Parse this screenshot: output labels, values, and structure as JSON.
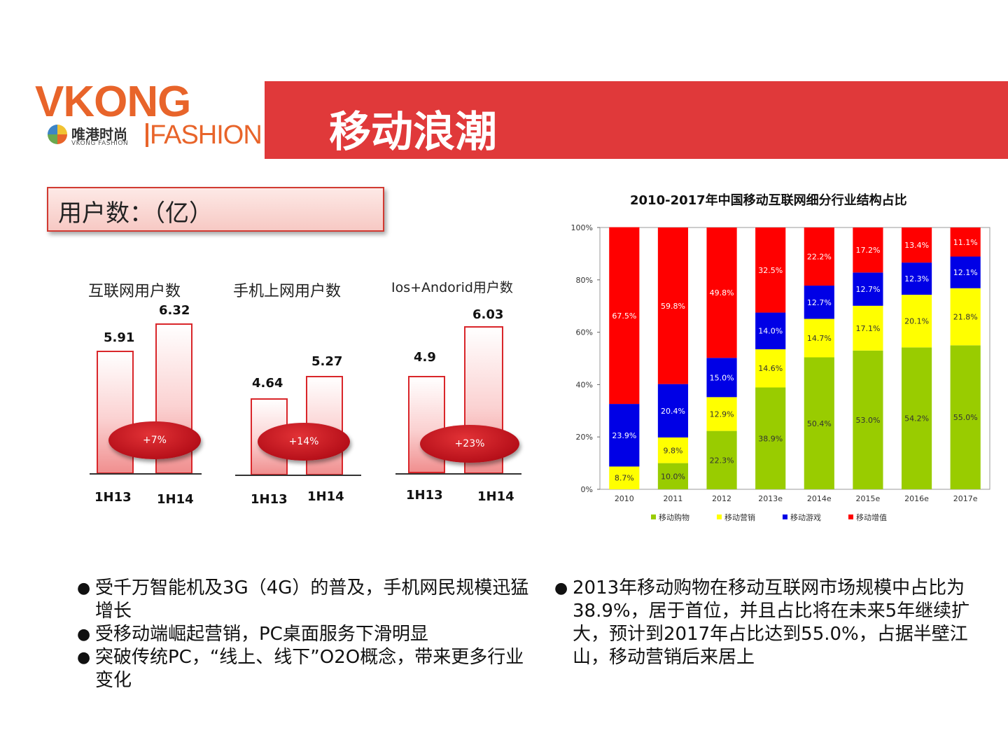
{
  "logo": {
    "brand": "VKONG",
    "cn": "唯港时尚",
    "sub": "VKONG FASHION",
    "fashion": "FASHION"
  },
  "title": "移动浪潮",
  "users_label": "用户数：（亿）",
  "mini_charts": [
    {
      "title": "互联网用户数",
      "periods": [
        "1H13",
        "1H14"
      ],
      "values": [
        5.91,
        6.32
      ],
      "labels": [
        "5.91",
        "6.32"
      ],
      "growth": "+7%"
    },
    {
      "title": "手机上网用户数",
      "periods": [
        "1H13",
        "1H14"
      ],
      "values": [
        4.64,
        5.27
      ],
      "labels": [
        "4.64",
        "5.27"
      ],
      "growth": "+14%"
    },
    {
      "title": "Ios+Andorid用户数",
      "periods": [
        "1H13",
        "1H14"
      ],
      "values": [
        4.9,
        6.03
      ],
      "labels": [
        "4.9",
        "6.03"
      ],
      "growth": "+23%"
    }
  ],
  "chart_data": {
    "type": "bar",
    "stacked": true,
    "title": "2010-2017年中国移动互联网细分行业结构占比",
    "categories": [
      "2010",
      "2011",
      "2012",
      "2013e",
      "2014e",
      "2015e",
      "2016e",
      "2017e"
    ],
    "yticks": [
      "0%",
      "20%",
      "40%",
      "60%",
      "80%",
      "100%"
    ],
    "ylim": [
      0,
      100
    ],
    "series": [
      {
        "name": "移动购物",
        "color": "#99cc00",
        "values": [
          0,
          10.0,
          22.3,
          38.9,
          50.4,
          53.0,
          54.2,
          55.0
        ],
        "labels": [
          "",
          "10.0%",
          "22.3%",
          "38.9%",
          "50.4%",
          "53.0%",
          "54.2%",
          "55.0%"
        ]
      },
      {
        "name": "移动营销",
        "color": "#ffff00",
        "values": [
          8.7,
          9.8,
          12.9,
          14.6,
          14.7,
          17.1,
          20.1,
          21.8
        ],
        "labels": [
          "8.7%",
          "9.8%",
          "12.9%",
          "14.6%",
          "14.7%",
          "17.1%",
          "20.1%",
          "21.8%"
        ]
      },
      {
        "name": "移动游戏",
        "color": "#0000e6",
        "values": [
          23.9,
          20.4,
          15.0,
          14.0,
          12.7,
          12.7,
          12.3,
          12.1
        ],
        "labels": [
          "23.9%",
          "20.4%",
          "15.0%",
          "14.0%",
          "12.7%",
          "12.7%",
          "12.3%",
          "12.1%"
        ]
      },
      {
        "name": "移动增值",
        "color": "#ff0000",
        "values": [
          67.5,
          59.8,
          49.8,
          32.5,
          22.2,
          17.2,
          13.4,
          11.1
        ],
        "labels": [
          "67.5%",
          "59.8%",
          "49.8%",
          "32.5%",
          "22.2%",
          "17.2%",
          "13.4%",
          "11.1%"
        ]
      }
    ]
  },
  "bullets_left": [
    "受千万智能机及3G（4G）的普及，手机网民规模迅猛增长",
    "受移动端崛起营销，PC桌面服务下滑明显",
    "突破传统PC，“线上、线下”O2O概念，带来更多行业变化"
  ],
  "bullets_right": [
    "2013年移动购物在移动互联网市场规模中占比为38.9%，居于首位，并且占比将在未来5年继续扩大，预计到2017年占比达到55.0%，占据半壁江山，移动营销后来居上"
  ]
}
